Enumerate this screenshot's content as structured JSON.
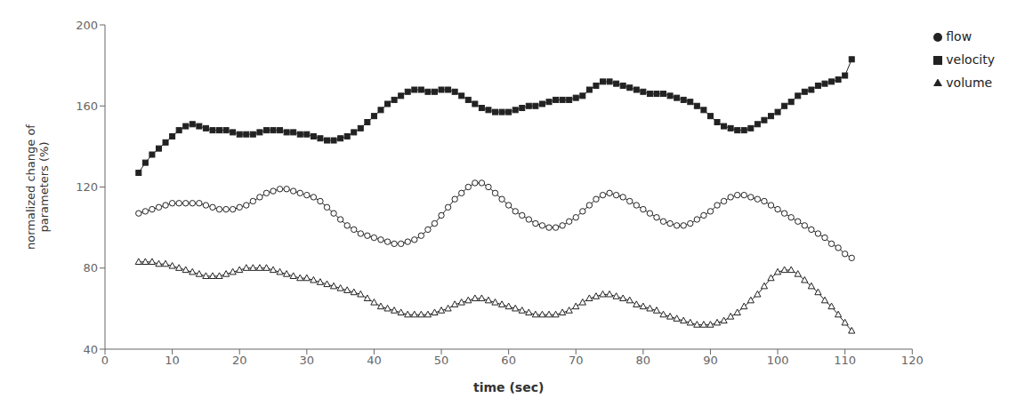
{
  "chart_data": {
    "type": "line",
    "xlabel": "time (sec)",
    "ylabel": "normalized change of\nparameters (%)",
    "xlim": [
      0,
      120
    ],
    "ylim": [
      40,
      200
    ],
    "xticks": [
      0,
      10,
      20,
      30,
      40,
      50,
      60,
      70,
      80,
      90,
      100,
      110,
      120
    ],
    "yticks": [
      40,
      80,
      120,
      160,
      200
    ],
    "grid": false,
    "legend": "right",
    "x": [
      5,
      6,
      7,
      8,
      9,
      10,
      11,
      12,
      13,
      14,
      15,
      16,
      17,
      18,
      19,
      20,
      21,
      22,
      23,
      24,
      25,
      26,
      27,
      28,
      29,
      30,
      31,
      32,
      33,
      34,
      35,
      36,
      37,
      38,
      39,
      40,
      41,
      42,
      43,
      44,
      45,
      46,
      47,
      48,
      49,
      50,
      51,
      52,
      53,
      54,
      55,
      56,
      57,
      58,
      59,
      60,
      61,
      62,
      63,
      64,
      65,
      66,
      67,
      68,
      69,
      70,
      71,
      72,
      73,
      74,
      75,
      76,
      77,
      78,
      79,
      80,
      81,
      82,
      83,
      84,
      85,
      86,
      87,
      88,
      89,
      90,
      91,
      92,
      93,
      94,
      95,
      96,
      97,
      98,
      99,
      100,
      101,
      102,
      103,
      104,
      105,
      106,
      107,
      108,
      109,
      110,
      111
    ],
    "series": [
      {
        "name": "velocity",
        "color": "#222222",
        "marker": "square",
        "values": [
          127,
          132,
          136,
          139,
          142,
          145,
          148,
          150,
          151,
          150,
          149,
          148,
          148,
          148,
          147,
          146,
          146,
          146,
          147,
          148,
          148,
          148,
          147,
          147,
          146,
          146,
          145,
          144,
          143,
          143,
          144,
          145,
          147,
          149,
          152,
          155,
          158,
          161,
          163,
          165,
          167,
          168,
          168,
          167,
          167,
          168,
          168,
          167,
          165,
          163,
          161,
          159,
          158,
          157,
          157,
          157,
          158,
          159,
          160,
          160,
          161,
          162,
          163,
          163,
          163,
          164,
          165,
          168,
          170,
          172,
          172,
          171,
          170,
          169,
          168,
          167,
          166,
          166,
          166,
          165,
          164,
          163,
          162,
          160,
          158,
          155,
          152,
          150,
          149,
          148,
          148,
          149,
          151,
          153,
          155,
          157,
          160,
          162,
          165,
          167,
          168,
          170,
          171,
          172,
          173,
          175,
          183
        ]
      },
      {
        "name": "flow",
        "color": "#222222",
        "marker": "open circle",
        "values": [
          107,
          108,
          109,
          110,
          111,
          112,
          112,
          112,
          112,
          112,
          111,
          110,
          109,
          109,
          109,
          110,
          111,
          113,
          115,
          117,
          118,
          119,
          119,
          118,
          117,
          116,
          115,
          113,
          110,
          107,
          104,
          101,
          99,
          97,
          96,
          95,
          94,
          93,
          92,
          92,
          93,
          94,
          96,
          99,
          102,
          106,
          110,
          114,
          117,
          120,
          122,
          122,
          120,
          117,
          114,
          111,
          108,
          106,
          104,
          102,
          101,
          100,
          100,
          101,
          103,
          105,
          108,
          111,
          114,
          116,
          117,
          116,
          115,
          113,
          111,
          109,
          107,
          105,
          103,
          102,
          101,
          101,
          102,
          104,
          106,
          108,
          111,
          113,
          115,
          116,
          116,
          115,
          114,
          113,
          111,
          109,
          107,
          105,
          103,
          101,
          99,
          97,
          95,
          92,
          90,
          87,
          85
        ]
      },
      {
        "name": "volume",
        "color": "#222222",
        "marker": "open triangle",
        "values": [
          83,
          83,
          83,
          82,
          82,
          81,
          80,
          79,
          78,
          77,
          76,
          76,
          76,
          77,
          78,
          79,
          80,
          80,
          80,
          80,
          79,
          78,
          77,
          76,
          75,
          75,
          74,
          73,
          72,
          71,
          70,
          69,
          68,
          67,
          65,
          63,
          61,
          60,
          59,
          58,
          57,
          57,
          57,
          57,
          58,
          59,
          60,
          62,
          63,
          64,
          65,
          65,
          64,
          63,
          62,
          61,
          60,
          59,
          58,
          57,
          57,
          57,
          57,
          58,
          59,
          61,
          63,
          65,
          66,
          67,
          67,
          66,
          65,
          64,
          62,
          61,
          60,
          59,
          57,
          56,
          55,
          54,
          53,
          52,
          52,
          52,
          53,
          54,
          56,
          58,
          61,
          64,
          67,
          71,
          75,
          78,
          79,
          79,
          77,
          74,
          71,
          68,
          64,
          61,
          57,
          53,
          49
        ]
      }
    ]
  }
}
